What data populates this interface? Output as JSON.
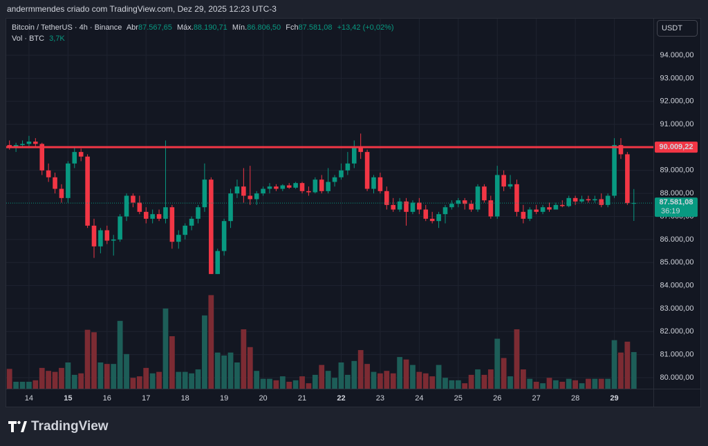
{
  "chart_data": {
    "type": "candlestick",
    "header": "andermmendes criado com TradingView.com, Dez 29, 2025 12:23 UTC-3",
    "legend": {
      "symbol": "Bitcoin / TetherUS · 4h · Binance",
      "open_label": "Abr",
      "open": "87.567,65",
      "high_label": "Máx.",
      "high": "88.190,71",
      "low_label": "Mín.",
      "low": "86.806,50",
      "close_label": "Fch",
      "close": "87.581,08",
      "change": "+13,42 (+0,02%)"
    },
    "volume_legend": {
      "name": "Vol · BTC",
      "value": "3,7K"
    },
    "currency": "USDT",
    "logo": "TradingView",
    "up_color": "#089981",
    "down_color": "#f23645",
    "up_volume_color": "#1d5e58",
    "down_volume_color": "#7c2b33",
    "ylim": [
      79520,
      95860
    ],
    "yticks": [
      {
        "value": 80000,
        "label": "80.000,00"
      },
      {
        "value": 81000,
        "label": "81.000,00"
      },
      {
        "value": 82000,
        "label": "82.000,00"
      },
      {
        "value": 83000,
        "label": "83.000,00"
      },
      {
        "value": 84000,
        "label": "84.000,00"
      },
      {
        "value": 85000,
        "label": "85.000,00"
      },
      {
        "value": 86000,
        "label": "86.000,00"
      },
      {
        "value": 87000,
        "label": "87.000,00"
      },
      {
        "value": 88000,
        "label": "88.000,00"
      },
      {
        "value": 89000,
        "label": "89.000,00"
      },
      {
        "value": 90000,
        "label": "90.000,00"
      },
      {
        "value": 91000,
        "label": "91.000,00"
      },
      {
        "value": 92000,
        "label": "92.000,00"
      },
      {
        "value": 93000,
        "label": "93.000,00"
      },
      {
        "value": 94000,
        "label": "94.000,00"
      }
    ],
    "xlim": [
      -0.5,
      99
    ],
    "xticks": [
      {
        "value": 3,
        "label": "14"
      },
      {
        "value": 9,
        "label": "15"
      },
      {
        "value": 15,
        "label": "16"
      },
      {
        "value": 21,
        "label": "17"
      },
      {
        "value": 27,
        "label": "18"
      },
      {
        "value": 33,
        "label": "19"
      },
      {
        "value": 39,
        "label": "20"
      },
      {
        "value": 45,
        "label": "21"
      },
      {
        "value": 51,
        "label": "22"
      },
      {
        "value": 57,
        "label": "23"
      },
      {
        "value": 63,
        "label": "24"
      },
      {
        "value": 69,
        "label": "25"
      },
      {
        "value": 75,
        "label": "26"
      },
      {
        "value": 81,
        "label": "27"
      },
      {
        "value": 87,
        "label": "28"
      },
      {
        "value": 93,
        "label": "29"
      }
    ],
    "bold_xticks": [
      1,
      8,
      15
    ],
    "grid": true,
    "hline": {
      "value": 90009.22,
      "label": "90.009,22",
      "color": "#f23645"
    },
    "last_price": {
      "value": 87581.08,
      "label": "87.581,08",
      "countdown": "36:19"
    },
    "vol_ylim": [
      0,
      38000
    ],
    "candles": [
      [
        90100,
        90300,
        89900,
        90000
      ],
      [
        90000,
        90200,
        89800,
        90100
      ],
      [
        90100,
        90300,
        90000,
        90150
      ],
      [
        90150,
        90500,
        90000,
        90250
      ],
      [
        90250,
        90400,
        90000,
        90150
      ],
      [
        90150,
        90200,
        88800,
        89000
      ],
      [
        89000,
        89300,
        88500,
        88700
      ],
      [
        88700,
        88900,
        88000,
        88200
      ],
      [
        88200,
        88400,
        87600,
        87800
      ],
      [
        87800,
        89400,
        87600,
        89300
      ],
      [
        89300,
        90000,
        89100,
        89800
      ],
      [
        89800,
        89950,
        89400,
        89600
      ],
      [
        89600,
        89700,
        86500,
        86600
      ],
      [
        86600,
        86900,
        85200,
        85700
      ],
      [
        85700,
        86500,
        85400,
        86400
      ],
      [
        86400,
        86600,
        85800,
        85950
      ],
      [
        85950,
        86200,
        85300,
        86000
      ],
      [
        86000,
        87100,
        85900,
        87000
      ],
      [
        87000,
        88000,
        86800,
        87900
      ],
      [
        87900,
        88000,
        87400,
        87600
      ],
      [
        87600,
        87900,
        87100,
        87200
      ],
      [
        87200,
        87400,
        86700,
        86900
      ],
      [
        86900,
        87300,
        86700,
        87100
      ],
      [
        87100,
        87300,
        86800,
        86900
      ],
      [
        86900,
        90300,
        86700,
        87400
      ],
      [
        87400,
        87500,
        85600,
        85900
      ],
      [
        85900,
        86400,
        85600,
        86200
      ],
      [
        86200,
        86700,
        86000,
        86600
      ],
      [
        86600,
        87000,
        86400,
        86900
      ],
      [
        86900,
        87500,
        86700,
        87400
      ],
      [
        87400,
        89300,
        87200,
        88600
      ],
      [
        88600,
        88700,
        84500,
        84500
      ],
      [
        84500,
        85600,
        84500,
        85500
      ],
      [
        85500,
        86900,
        85300,
        86800
      ],
      [
        86800,
        88200,
        86500,
        88000
      ],
      [
        88000,
        88600,
        87800,
        88300
      ],
      [
        88300,
        89100,
        87600,
        87900
      ],
      [
        87900,
        89200,
        87500,
        87750
      ],
      [
        87750,
        88100,
        87500,
        88000
      ],
      [
        88000,
        88300,
        87900,
        88200
      ],
      [
        88200,
        88450,
        88000,
        88300
      ],
      [
        88300,
        88400,
        88100,
        88200
      ],
      [
        88200,
        88400,
        88100,
        88350
      ],
      [
        88350,
        88450,
        88200,
        88250
      ],
      [
        88250,
        88500,
        88200,
        88450
      ],
      [
        88450,
        88500,
        88000,
        88100
      ],
      [
        88100,
        88300,
        87900,
        88050
      ],
      [
        88050,
        88700,
        88000,
        88600
      ],
      [
        88600,
        88800,
        88000,
        88100
      ],
      [
        88100,
        89100,
        88000,
        88500
      ],
      [
        88500,
        88800,
        88300,
        88700
      ],
      [
        88700,
        89300,
        88600,
        89000
      ],
      [
        89000,
        89800,
        88800,
        89300
      ],
      [
        89300,
        90300,
        89100,
        90000
      ],
      [
        90000,
        90600,
        89500,
        89800
      ],
      [
        89800,
        89900,
        88100,
        88200
      ],
      [
        88200,
        88800,
        88000,
        88700
      ],
      [
        88700,
        88900,
        88000,
        88100
      ],
      [
        88100,
        88300,
        87300,
        87500
      ],
      [
        87500,
        87800,
        87200,
        87300
      ],
      [
        87300,
        87800,
        87200,
        87650
      ],
      [
        87650,
        87800,
        86600,
        87200
      ],
      [
        87200,
        87700,
        87100,
        87600
      ],
      [
        87600,
        87800,
        87100,
        87300
      ],
      [
        87300,
        87500,
        86800,
        86900
      ],
      [
        86900,
        87200,
        86700,
        86800
      ],
      [
        86800,
        87200,
        86500,
        87100
      ],
      [
        87100,
        87500,
        86700,
        87400
      ],
      [
        87400,
        87700,
        87300,
        87550
      ],
      [
        87550,
        87800,
        87400,
        87700
      ],
      [
        87700,
        87800,
        87300,
        87550
      ],
      [
        87550,
        87700,
        87200,
        87300
      ],
      [
        87300,
        88400,
        87200,
        88300
      ],
      [
        88300,
        88400,
        87600,
        87700
      ],
      [
        87700,
        87900,
        86900,
        87000
      ],
      [
        87000,
        89200,
        86900,
        88800
      ],
      [
        88800,
        89000,
        88100,
        88300
      ],
      [
        88300,
        88800,
        88200,
        88400
      ],
      [
        88400,
        88600,
        87000,
        87200
      ],
      [
        87200,
        87500,
        86700,
        86900
      ],
      [
        86900,
        87400,
        86800,
        87300
      ],
      [
        87300,
        87500,
        87100,
        87200
      ],
      [
        87200,
        87500,
        87100,
        87400
      ],
      [
        87400,
        87600,
        87200,
        87300
      ],
      [
        87300,
        87600,
        87300,
        87500
      ],
      [
        87500,
        87700,
        87400,
        87450
      ],
      [
        87450,
        87900,
        87400,
        87800
      ],
      [
        87800,
        87900,
        87500,
        87650
      ],
      [
        87650,
        87900,
        87600,
        87750
      ],
      [
        87750,
        87900,
        87600,
        87700
      ],
      [
        87700,
        87900,
        87600,
        87750
      ],
      [
        87750,
        88000,
        87400,
        87500
      ],
      [
        87500,
        88000,
        87400,
        87900
      ],
      [
        87900,
        90400,
        87800,
        90100
      ],
      [
        90100,
        90400,
        89500,
        89700
      ],
      [
        89700,
        89800,
        87500,
        87580
      ],
      [
        87567.65,
        88190.71,
        86806.5,
        87581.08
      ]
    ],
    "volumes": [
      2000,
      700,
      700,
      700,
      850,
      2100,
      1800,
      1700,
      2100,
      2650,
      1400,
      1550,
      5950,
      5700,
      2650,
      2500,
      2500,
      6850,
      3500,
      1100,
      1250,
      2100,
      1550,
      1700,
      8100,
      5300,
      1700,
      1700,
      1550,
      1950,
      7400,
      9450,
      3650,
      3350,
      3650,
      2650,
      6000,
      4200,
      1800,
      1000,
      1000,
      850,
      1250,
      700,
      850,
      1250,
      550,
      1400,
      2400,
      1800,
      1100,
      2650,
      1400,
      2800,
      3900,
      2500,
      1700,
      1550,
      1800,
      1550,
      3200,
      2950,
      2400,
      1700,
      1550,
      1250,
      2400,
      1100,
      850,
      850,
      550,
      1400,
      1950,
      1400,
      1950,
      5050,
      3100,
      1250,
      6000,
      1950,
      1000,
      700,
      550,
      1100,
      850,
      700,
      1000,
      850,
      550,
      1000,
      1000,
      1000,
      1000,
      4900,
      3650,
      4750,
      3700
    ]
  }
}
